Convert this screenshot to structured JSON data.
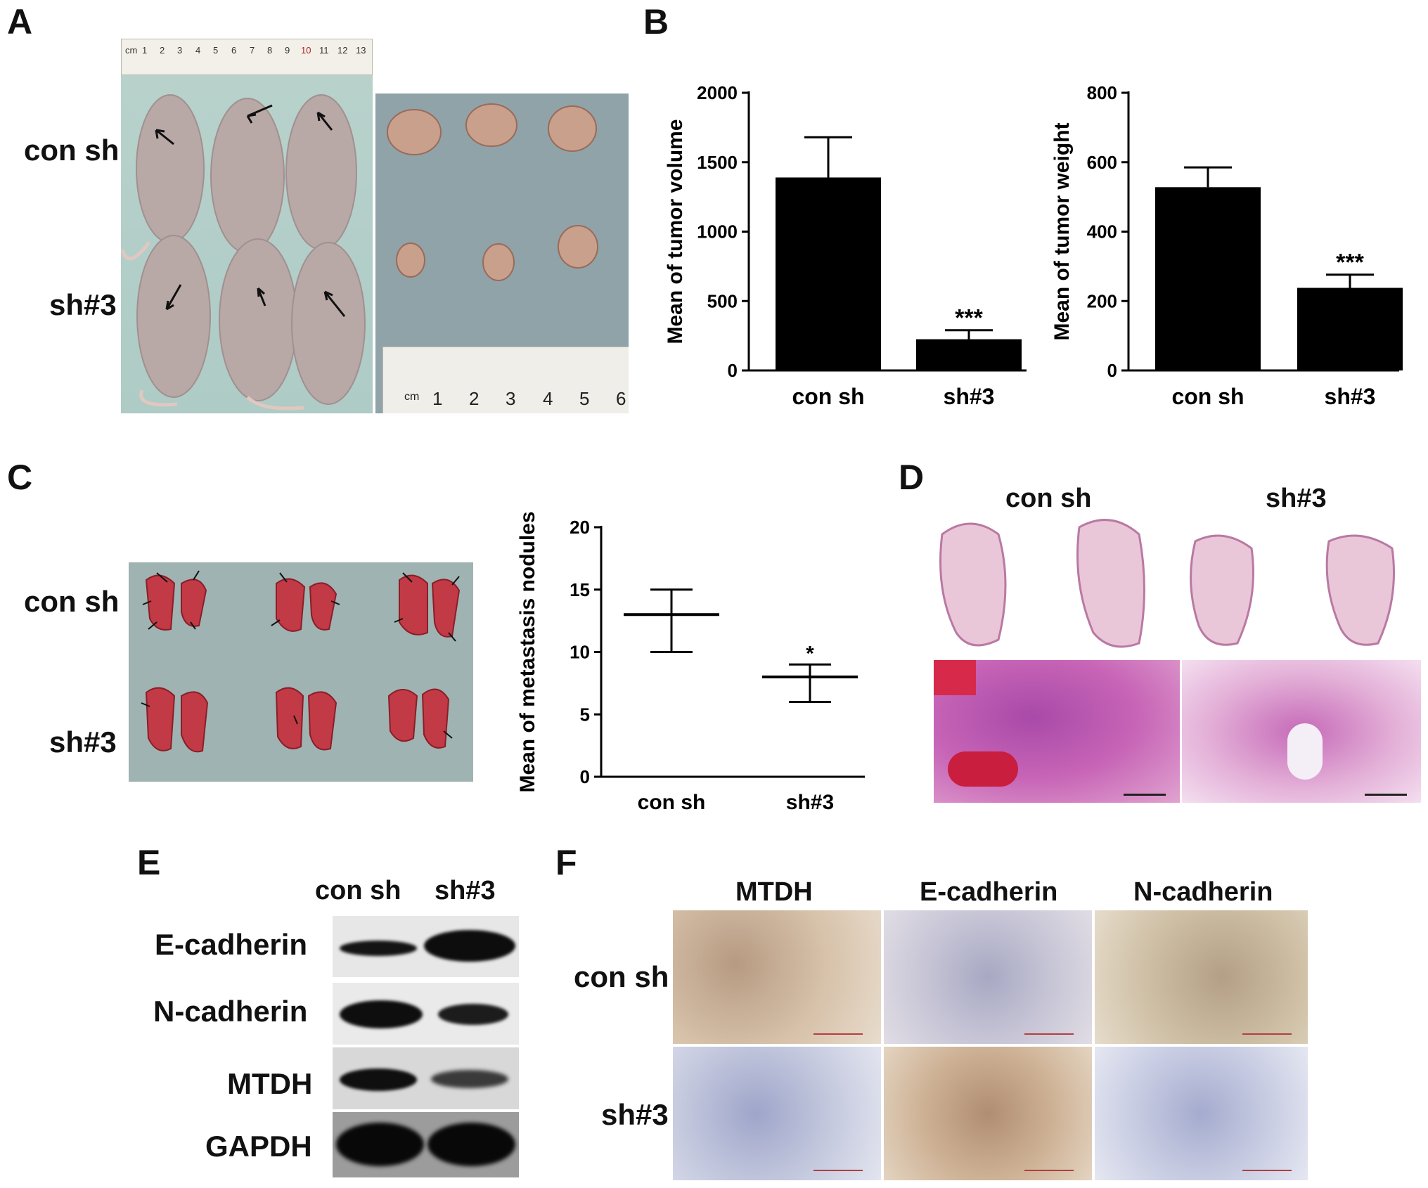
{
  "panels": {
    "a": {
      "letter": "A",
      "row_labels": [
        "con sh",
        "sh#3"
      ],
      "top_ruler": [
        "cm",
        "1",
        "2",
        "3",
        "4",
        "5",
        "6",
        "7",
        "8",
        "9",
        "10",
        "11",
        "12",
        "13"
      ],
      "bottom_ruler": [
        "cm",
        "1",
        "2",
        "3",
        "4",
        "5",
        "6"
      ]
    },
    "b": {
      "letter": "B"
    },
    "c": {
      "letter": "C",
      "row_labels": [
        "con sh",
        "sh#3"
      ]
    },
    "d": {
      "letter": "D",
      "group_labels": [
        "con sh",
        "sh#3"
      ]
    },
    "e": {
      "letter": "E",
      "lane_labels": [
        "con sh",
        "sh#3"
      ],
      "proteins": [
        "E-cadherin",
        "N-cadherin",
        "MTDH",
        "GAPDH"
      ]
    },
    "f": {
      "letter": "F",
      "stain_labels": [
        "MTDH",
        "E-cadherin",
        "N-cadherin"
      ],
      "row_labels": [
        "con sh",
        "sh#3"
      ]
    }
  },
  "chart_data": [
    {
      "id": "tumor-volume",
      "type": "bar",
      "categories": [
        "con sh",
        "sh#3"
      ],
      "values": [
        1390,
        225
      ],
      "error": [
        290,
        65
      ],
      "significance": [
        "",
        "***"
      ],
      "ylabel": "Mean of tumor volume",
      "ylim": [
        0,
        2000
      ],
      "yticks": [
        0,
        500,
        1000,
        1500,
        2000
      ],
      "color": "#000000"
    },
    {
      "id": "tumor-weight",
      "type": "bar",
      "categories": [
        "con sh",
        "sh#3"
      ],
      "values": [
        528,
        238
      ],
      "error": [
        57,
        38
      ],
      "significance": [
        "",
        "***"
      ],
      "ylabel": "Mean of tumor weight",
      "ylim": [
        0,
        800
      ],
      "yticks": [
        0,
        200,
        400,
        600,
        800
      ],
      "color": "#000000"
    },
    {
      "id": "metastasis-nodules",
      "type": "scatter",
      "categories": [
        "con sh",
        "sh#3"
      ],
      "mean": [
        13,
        8
      ],
      "upper": [
        15,
        9
      ],
      "lower": [
        10,
        6
      ],
      "significance": [
        "",
        "*"
      ],
      "ylabel": "Mean of metastasis nodules",
      "ylim": [
        0,
        20
      ],
      "yticks": [
        0,
        5,
        10,
        15,
        20
      ]
    }
  ]
}
